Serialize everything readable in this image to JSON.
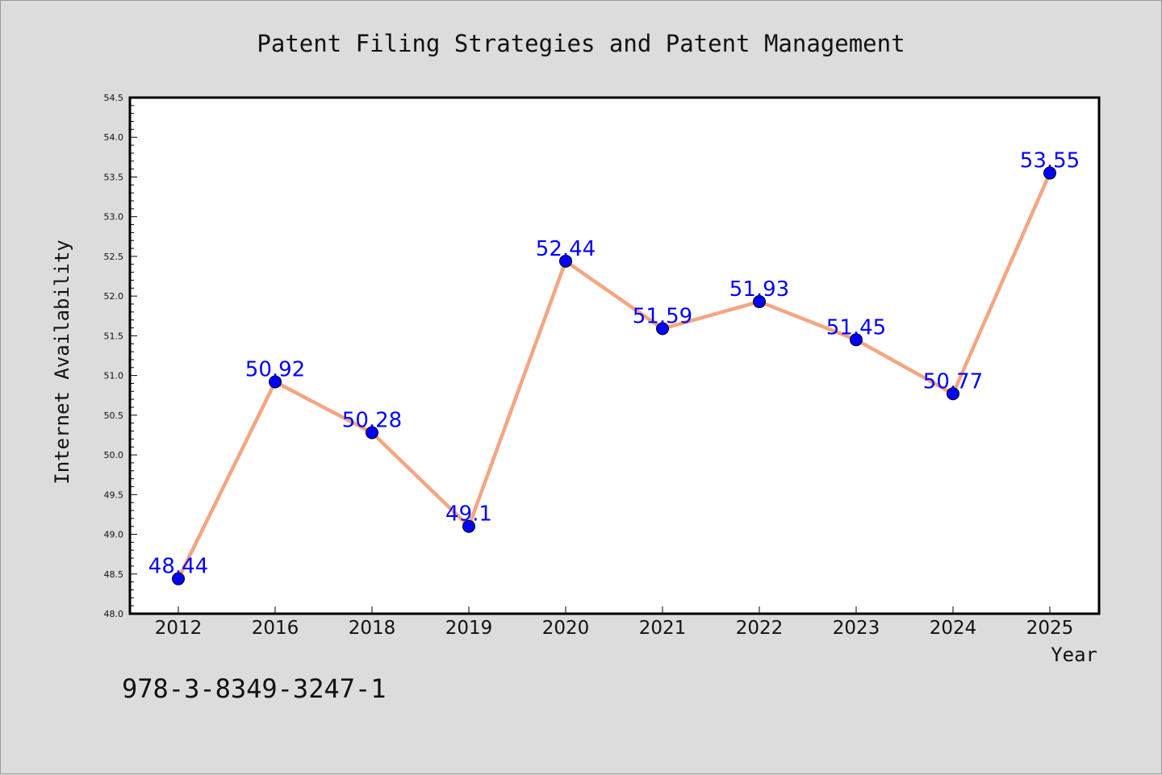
{
  "chart_data": {
    "type": "line",
    "title": "Patent Filing Strategies and Patent Management",
    "xlabel": "Year",
    "ylabel": "Internet Availability",
    "categories": [
      "2012",
      "2016",
      "2018",
      "2019",
      "2020",
      "2021",
      "2022",
      "2023",
      "2024",
      "2025"
    ],
    "series": [
      {
        "values": [
          48.44,
          50.92,
          50.28,
          49.1,
          52.44,
          51.59,
          51.93,
          51.45,
          50.77,
          53.55
        ],
        "labels": [
          "48.44",
          "50.92",
          "50.28",
          "49.1",
          "52.44",
          "51.59",
          "51.93",
          "51.45",
          "50.77",
          "53.55"
        ]
      }
    ],
    "ylim": [
      48.0,
      54.5
    ],
    "yticks": [
      "48.0",
      "48.5",
      "49.0",
      "49.5",
      "50.0",
      "50.5",
      "51.0",
      "51.5",
      "52.0",
      "52.5",
      "53.0",
      "53.5",
      "54.0",
      "54.5"
    ],
    "grid": false,
    "legend": "none",
    "colors": {
      "line": "#f4a582",
      "marker": "#0000ff",
      "label": "#0000ff",
      "plot_bg": "#ffffff",
      "page_bg": "#dcdcdc"
    }
  },
  "footer": {
    "isbn": "978-3-8349-3247-1"
  }
}
